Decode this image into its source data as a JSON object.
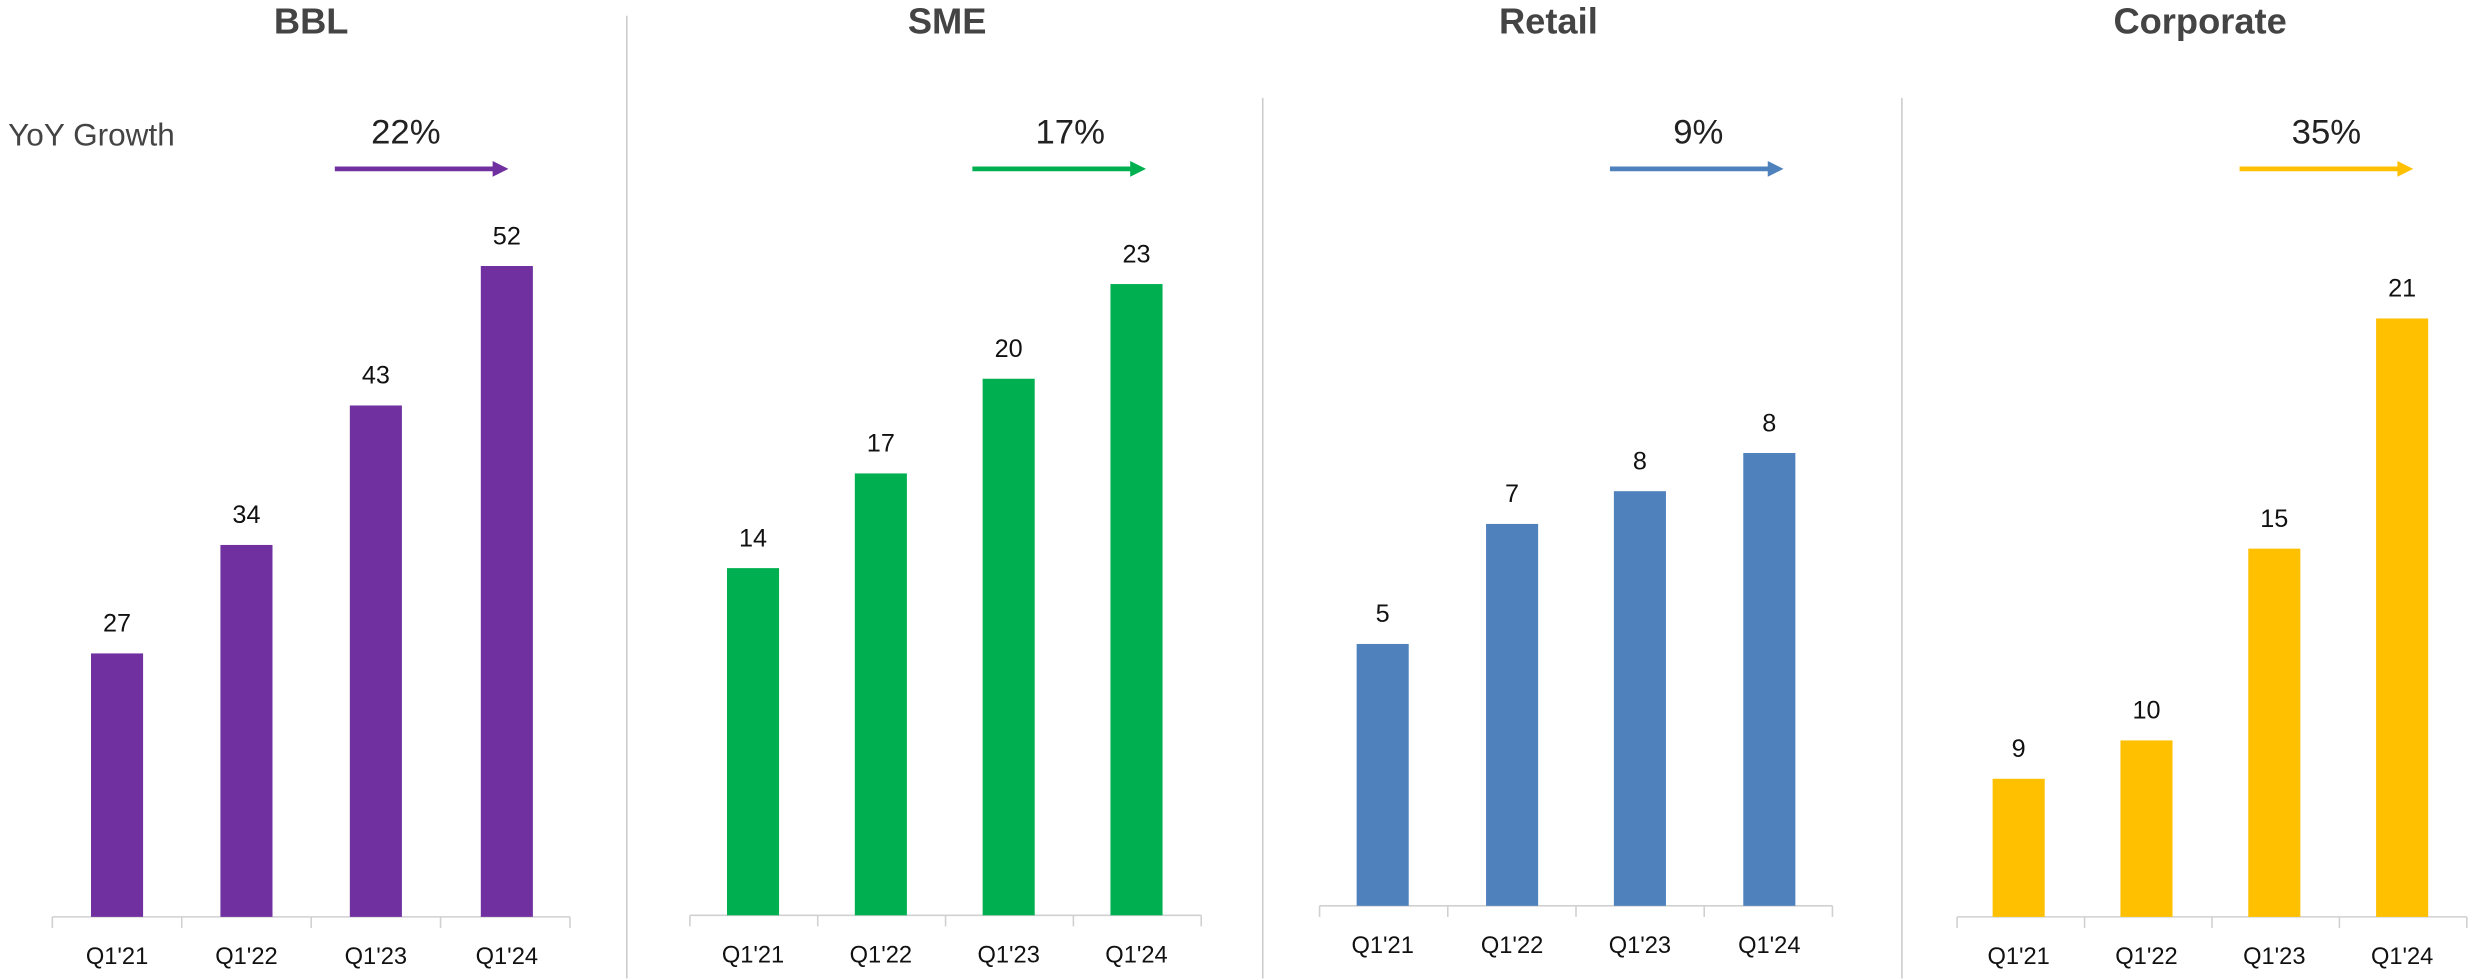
{
  "annotation": "YoY Growth",
  "chart_data": [
    {
      "type": "bar",
      "title": "BBL",
      "growth": "22%",
      "categories": [
        "Q1'21",
        "Q1'22",
        "Q1'23",
        "Q1'24"
      ],
      "values": [
        27,
        34,
        43,
        52
      ],
      "color": "#7030a0",
      "ylim": [
        10,
        60
      ]
    },
    {
      "type": "bar",
      "title": "SME",
      "growth": "17%",
      "categories": [
        "Q1'21",
        "Q1'22",
        "Q1'23",
        "Q1'24"
      ],
      "values": [
        14,
        17,
        20,
        23
      ],
      "color": "#00b050",
      "ylim": [
        3,
        27.5
      ]
    },
    {
      "type": "bar",
      "title": "Retail",
      "growth": "9%",
      "categories": [
        "Q1'21",
        "Q1'22",
        "Q1'23",
        "Q1'24"
      ],
      "values": [
        4.8,
        7.0,
        7.6,
        8.3
      ],
      "value_labels": [
        "5",
        "7",
        "8",
        "8"
      ],
      "color": "#4f81bd",
      "ylim": [
        0,
        14
      ]
    },
    {
      "type": "bar",
      "title": "Corporate",
      "growth": "35%",
      "categories": [
        "Q1'21",
        "Q1'22",
        "Q1'23",
        "Q1'24"
      ],
      "values": [
        9,
        10,
        15,
        21
      ],
      "color": "#ffc000",
      "ylim": [
        5.4,
        25.6
      ]
    }
  ]
}
